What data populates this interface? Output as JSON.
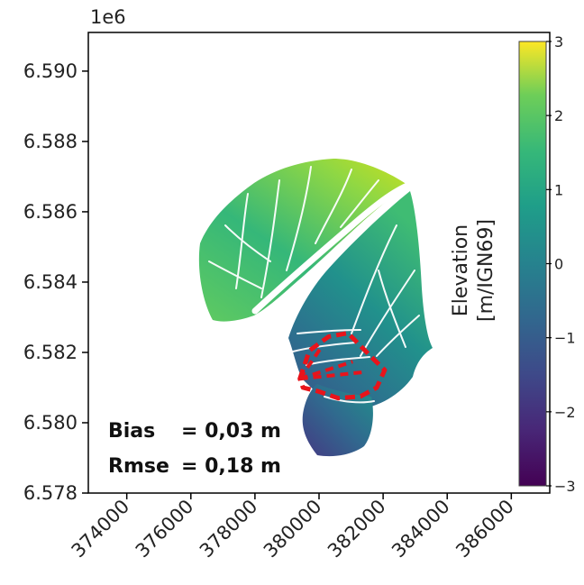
{
  "chart_data": {
    "type": "heatmap",
    "title": "",
    "xlabel": "",
    "ylabel": "",
    "y_offset_label": "1e6",
    "x_ticks": [
      374000,
      376000,
      378000,
      380000,
      382000,
      384000,
      386000
    ],
    "x_tick_labels": [
      "374000",
      "376000",
      "378000",
      "380000",
      "382000",
      "384000",
      "386000"
    ],
    "y_ticks": [
      6.578,
      6.58,
      6.582,
      6.584,
      6.586,
      6.588,
      6.59
    ],
    "y_tick_labels": [
      "6.578",
      "6.580",
      "6.582",
      "6.584",
      "6.586",
      "6.588",
      "6.590"
    ],
    "xlim": [
      372800,
      387200
    ],
    "ylim": [
      6.578,
      6.5911
    ],
    "colorbar": {
      "label_line1": "Elevation",
      "label_line2": "[m/IGN69]",
      "min": -3,
      "max": 3,
      "ticks": [
        3,
        2,
        1,
        0,
        -1,
        -2,
        -3
      ],
      "tick_labels": [
        "3",
        "2",
        "1",
        "0",
        "−1",
        "−2",
        "−3"
      ],
      "colormap": "viridis"
    },
    "highlight_region": {
      "color": "#e8141b",
      "style": "dashed",
      "polygon": [
        [
          379400,
          6.58125
        ],
        [
          379700,
          6.58205
        ],
        [
          380300,
          6.58245
        ],
        [
          380900,
          6.58255
        ],
        [
          381600,
          6.5819
        ],
        [
          382050,
          6.5815
        ],
        [
          381800,
          6.581
        ],
        [
          381300,
          6.58075
        ],
        [
          380600,
          6.5807
        ],
        [
          379950,
          6.5809
        ],
        [
          379500,
          6.581
        ]
      ]
    },
    "annotations": [
      {
        "label": "Bias",
        "value": "= 0,03 m"
      },
      {
        "label": "Rmse",
        "value": "= 0,18 m"
      }
    ]
  }
}
